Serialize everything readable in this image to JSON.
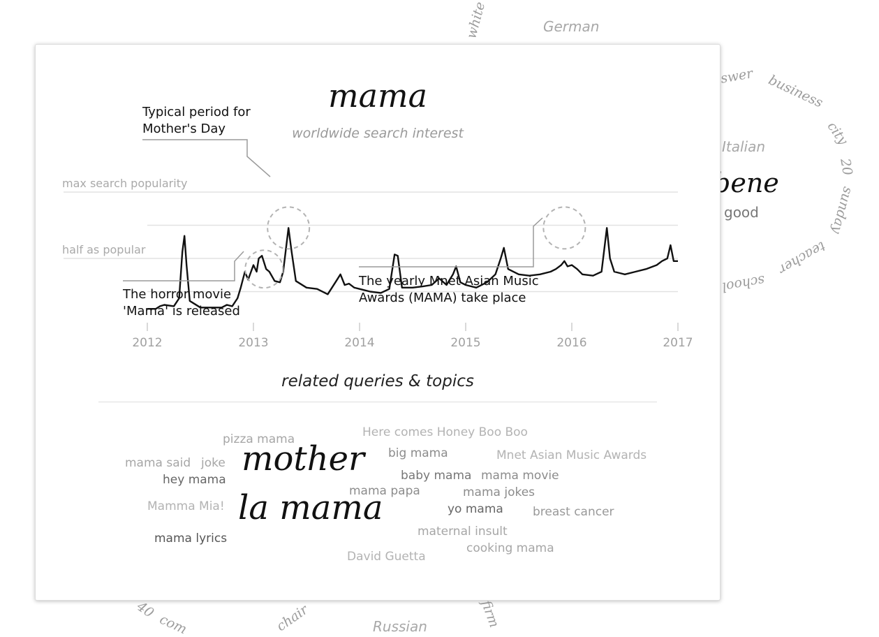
{
  "background": {
    "words": [
      "German",
      "Italian",
      "Russian"
    ],
    "ring_words": [
      "white",
      "swer",
      "business",
      "city",
      "20",
      "sunday",
      "teacher",
      "school",
      "40",
      "com",
      "chair",
      "firm"
    ],
    "translation": {
      "word": "bene",
      "meaning": "good"
    }
  },
  "card": {
    "title": "mama",
    "subtitle": "worldwide search interest",
    "related_heading": "related queries & topics"
  },
  "chart_data": {
    "type": "line",
    "title": "mama",
    "subtitle": "worldwide search interest",
    "x_ticks": [
      "2012",
      "2013",
      "2014",
      "2015",
      "2016",
      "2017"
    ],
    "xlim": [
      2012.0,
      2017.0
    ],
    "ylim": [
      0,
      100
    ],
    "reference_lines": [
      {
        "label": "max search popularity",
        "value": 100
      },
      {
        "label": "half as popular",
        "value": 50
      }
    ],
    "series": [
      {
        "points": [
          [
            2012.0,
            12
          ],
          [
            2012.08,
            12
          ],
          [
            2012.12,
            14
          ],
          [
            2012.16,
            15
          ],
          [
            2012.25,
            14
          ],
          [
            2012.3,
            20
          ],
          [
            2012.33,
            55
          ],
          [
            2012.35,
            67
          ],
          [
            2012.37,
            45
          ],
          [
            2012.4,
            18
          ],
          [
            2012.5,
            13
          ],
          [
            2012.6,
            13
          ],
          [
            2012.7,
            13
          ],
          [
            2012.75,
            15
          ],
          [
            2012.8,
            14
          ],
          [
            2012.85,
            20
          ],
          [
            2012.88,
            28
          ],
          [
            2012.92,
            40
          ],
          [
            2012.95,
            34
          ],
          [
            2013.0,
            45
          ],
          [
            2013.03,
            40
          ],
          [
            2013.05,
            50
          ],
          [
            2013.08,
            52
          ],
          [
            2013.12,
            42
          ],
          [
            2013.15,
            40
          ],
          [
            2013.2,
            33
          ],
          [
            2013.25,
            32
          ],
          [
            2013.28,
            40
          ],
          [
            2013.33,
            73
          ],
          [
            2013.36,
            55
          ],
          [
            2013.4,
            33
          ],
          [
            2013.5,
            28
          ],
          [
            2013.6,
            27
          ],
          [
            2013.7,
            23
          ],
          [
            2013.78,
            33
          ],
          [
            2013.82,
            38
          ],
          [
            2013.86,
            30
          ],
          [
            2013.9,
            31
          ],
          [
            2013.95,
            28
          ],
          [
            2014.0,
            27
          ],
          [
            2014.1,
            25
          ],
          [
            2014.2,
            24
          ],
          [
            2014.28,
            27
          ],
          [
            2014.33,
            53
          ],
          [
            2014.36,
            52
          ],
          [
            2014.4,
            28
          ],
          [
            2014.5,
            28
          ],
          [
            2014.6,
            29
          ],
          [
            2014.68,
            30
          ],
          [
            2014.75,
            35
          ],
          [
            2014.82,
            30
          ],
          [
            2014.88,
            38
          ],
          [
            2014.91,
            44
          ],
          [
            2014.95,
            32
          ],
          [
            2015.0,
            30
          ],
          [
            2015.1,
            28
          ],
          [
            2015.2,
            32
          ],
          [
            2015.28,
            38
          ],
          [
            2015.33,
            50
          ],
          [
            2015.36,
            58
          ],
          [
            2015.4,
            42
          ],
          [
            2015.5,
            38
          ],
          [
            2015.6,
            37
          ],
          [
            2015.7,
            38
          ],
          [
            2015.8,
            40
          ],
          [
            2015.85,
            42
          ],
          [
            2015.9,
            45
          ],
          [
            2015.93,
            48
          ],
          [
            2015.96,
            44
          ],
          [
            2016.0,
            45
          ],
          [
            2016.05,
            42
          ],
          [
            2016.1,
            38
          ],
          [
            2016.2,
            37
          ],
          [
            2016.28,
            40
          ],
          [
            2016.33,
            73
          ],
          [
            2016.36,
            50
          ],
          [
            2016.4,
            40
          ],
          [
            2016.5,
            38
          ],
          [
            2016.6,
            40
          ],
          [
            2016.7,
            42
          ],
          [
            2016.8,
            45
          ],
          [
            2016.85,
            48
          ],
          [
            2016.9,
            50
          ],
          [
            2016.93,
            60
          ],
          [
            2016.96,
            48
          ],
          [
            2017.0,
            48
          ]
        ]
      }
    ],
    "annotations": [
      {
        "text_lines": [
          "Typical period for",
          "Mother's Day"
        ],
        "x": 2013.33,
        "y": 73
      },
      {
        "text_lines": [
          "The horror movie",
          "'Mama' is released"
        ],
        "x": 2012.85,
        "y": 35
      },
      {
        "text_lines": [],
        "x": 2013.1,
        "y": 42
      },
      {
        "text_lines": [
          "The yearly Mnet Asian Music",
          "Awards (MAMA) take place"
        ],
        "x": 2015.93,
        "y": 73
      }
    ]
  },
  "related": [
    {
      "text": "pizza mama",
      "weight": 2,
      "color": "#a6a6a6"
    },
    {
      "text": "Here comes Honey Boo Boo",
      "weight": 2,
      "color": "#b3b3b3"
    },
    {
      "text": "big mama",
      "weight": 2,
      "color": "#8c8c8c"
    },
    {
      "text": "Mnet Asian Music Awards",
      "weight": 2,
      "color": "#b3b3b3"
    },
    {
      "text": "mama said",
      "weight": 2,
      "color": "#a6a6a6"
    },
    {
      "text": "joke",
      "weight": 2,
      "color": "#a6a6a6"
    },
    {
      "text": "mother",
      "weight": 5,
      "color": "#111111"
    },
    {
      "text": "hey mama",
      "weight": 2,
      "color": "#666666"
    },
    {
      "text": "baby mama",
      "weight": 2,
      "color": "#777777"
    },
    {
      "text": "mama movie",
      "weight": 2,
      "color": "#8c8c8c"
    },
    {
      "text": "mama papa",
      "weight": 2,
      "color": "#8c8c8c"
    },
    {
      "text": "mama jokes",
      "weight": 2,
      "color": "#8c8c8c"
    },
    {
      "text": "Mamma Mia!",
      "weight": 2,
      "color": "#b3b3b3"
    },
    {
      "text": "la mama",
      "weight": 5,
      "color": "#111111"
    },
    {
      "text": "yo mama",
      "weight": 2,
      "color": "#666666"
    },
    {
      "text": "breast cancer",
      "weight": 2,
      "color": "#999999"
    },
    {
      "text": "maternal insult",
      "weight": 2,
      "color": "#a6a6a6"
    },
    {
      "text": "mama lyrics",
      "weight": 2,
      "color": "#555555"
    },
    {
      "text": "cooking mama",
      "weight": 2,
      "color": "#a6a6a6"
    },
    {
      "text": "David Guetta",
      "weight": 2,
      "color": "#b3b3b3"
    }
  ]
}
